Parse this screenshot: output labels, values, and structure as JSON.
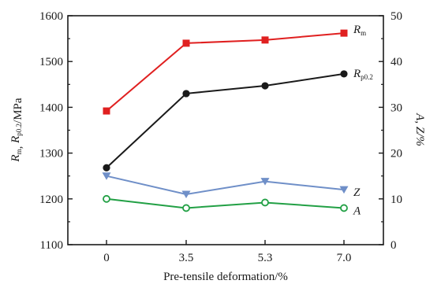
{
  "chart_data": {
    "type": "line",
    "categories": [
      "0",
      "3.5",
      "5.3",
      "7.0"
    ],
    "xlabel": "Pre-tensile deformation/%",
    "ylabel_left": {
      "main": "R",
      "parts": [
        [
          "m",
          ", "
        ],
        [
          "p0.2",
          "/MPa"
        ]
      ]
    },
    "ylabel_right": "A, Z/%",
    "ylim_left": [
      1100,
      1600
    ],
    "yticks_left": [
      1100,
      1200,
      1300,
      1400,
      1500,
      1600
    ],
    "ylim_right": [
      0,
      50
    ],
    "yticks_right": [
      0,
      10,
      20,
      30,
      40,
      50
    ],
    "grid": false,
    "series": [
      {
        "key": "Rm",
        "label_main": "R",
        "label_sub": "m",
        "axis": "left",
        "color": "#e02020",
        "marker": "square-filled",
        "values": [
          1392,
          1540,
          1547,
          1562
        ]
      },
      {
        "key": "Rp02",
        "label_main": "R",
        "label_sub": "p0.2",
        "axis": "left",
        "color": "#1a1a1a",
        "marker": "circle-filled",
        "values": [
          1268,
          1430,
          1447,
          1473
        ]
      },
      {
        "key": "Z",
        "label_main": "Z",
        "label_sub": "",
        "axis": "right",
        "color": "#6f8fc8",
        "marker": "triangle-down-filled",
        "values": [
          15,
          11,
          13.8,
          12
        ]
      },
      {
        "key": "A",
        "label_main": "A",
        "label_sub": "",
        "axis": "right",
        "color": "#22a045",
        "marker": "circle-open",
        "values": [
          10,
          8,
          9.2,
          8
        ]
      }
    ]
  }
}
